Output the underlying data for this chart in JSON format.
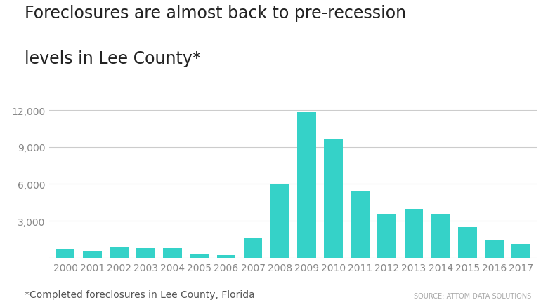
{
  "years": [
    "2000",
    "2001",
    "2002",
    "2003",
    "2004",
    "2005",
    "2006",
    "2007",
    "2008",
    "2009",
    "2010",
    "2011",
    "2012",
    "2013",
    "2014",
    "2015",
    "2016",
    "2017"
  ],
  "values": [
    700,
    560,
    900,
    780,
    780,
    280,
    200,
    1600,
    6050,
    11850,
    9600,
    5400,
    3500,
    4000,
    3500,
    2500,
    1400,
    1100
  ],
  "bar_color": "#35D2C8",
  "title_line1": "Foreclosures are almost back to pre-recession",
  "title_line2": "levels in Lee County*",
  "yticks": [
    0,
    3000,
    6000,
    9000,
    12000
  ],
  "ylim": [
    0,
    13000
  ],
  "footnote": "*Completed foreclosures in Lee County, Florida",
  "source": "SOURCE: ATTOM DATA SOLUTIONS",
  "background_color": "#ffffff",
  "grid_color": "#cccccc",
  "title_fontsize": 17,
  "tick_fontsize": 10,
  "footnote_fontsize": 10,
  "source_fontsize": 7
}
